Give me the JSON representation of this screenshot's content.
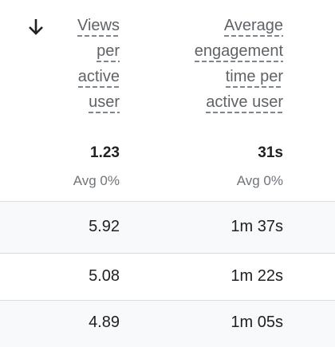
{
  "columns": [
    {
      "header_lines": [
        "Views",
        "per",
        "active",
        "user"
      ],
      "total": "1.23",
      "total_note": "Avg 0%"
    },
    {
      "header_lines": [
        "Average",
        "engagement",
        "time per",
        "active user"
      ],
      "total": "31s",
      "total_note": "Avg 0%"
    }
  ],
  "rows": [
    [
      "5.92",
      "1m 37s"
    ],
    [
      "5.08",
      "1m 22s"
    ],
    [
      "4.89",
      "1m 05s"
    ]
  ]
}
